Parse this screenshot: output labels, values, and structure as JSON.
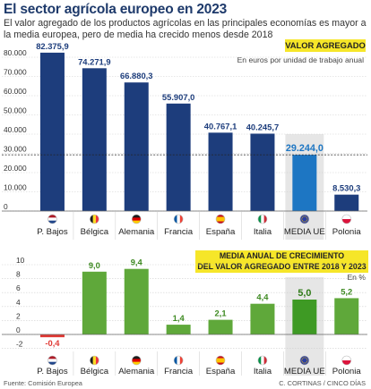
{
  "title": "El sector agrícola europeo en 2023",
  "subtitle": "El valor agregado de los productos agrícolas en las principales economías es mayor a la media europea, pero de media ha crecido menos desde 2018",
  "colors": {
    "bar_dark": "#1d3d7c",
    "bar_highlight": "#1d76c3",
    "green": "#5fa83a",
    "green_highlight": "#3e9a24",
    "red": "#e03a35",
    "highlight_bg": "#e6e6e6",
    "label_bg": "#f6e629"
  },
  "footer": {
    "source": "Fuente: Comisión Europea",
    "credit": "C. CORTINAS / CINCO DÍAS"
  },
  "chart_data": [
    {
      "type": "bar",
      "label": "VALOR AGREGADO",
      "unit": "En euros por unidad de trabajo anual",
      "categories": [
        "P. Bajos",
        "Bélgica",
        "Alemania",
        "Francia",
        "España",
        "Italia",
        "MEDIA UE",
        "Polonia"
      ],
      "flags": [
        "nl",
        "be",
        "de",
        "fr",
        "es",
        "it",
        "eu",
        "pl"
      ],
      "values": [
        82375.9,
        74271.9,
        66880.3,
        55907.0,
        40767.1,
        40245.7,
        29244.0,
        8530.3
      ],
      "value_labels": [
        "82.375,9",
        "74.271,9",
        "66.880,3",
        "55.907,0",
        "40.767,1",
        "40.245,7",
        "29.244,0",
        "8.530,3"
      ],
      "highlight_index": 6,
      "ylim": [
        0,
        80000
      ],
      "yticks": [
        0,
        10000,
        20000,
        30000,
        40000,
        50000,
        60000,
        70000,
        80000
      ],
      "ytick_labels": [
        "0",
        "10.000",
        "20.000",
        "30.000",
        "40.000",
        "50.000",
        "60.000",
        "70.000",
        "80.000"
      ],
      "reference_line": 29244.0
    },
    {
      "type": "bar",
      "label": "MEDIA ANUAL DE CRECIMIENTO DEL VALOR AGREGADO ENTRE 2018 Y 2023",
      "label_lines": [
        "MEDIA ANUAL DE CRECIMIENTO",
        "DEL VALOR AGREGADO ENTRE 2018 Y 2023"
      ],
      "unit": "En %",
      "categories": [
        "P. Bajos",
        "Bélgica",
        "Alemania",
        "Francia",
        "España",
        "Italia",
        "MEDIA UE",
        "Polonia"
      ],
      "flags": [
        "nl",
        "be",
        "de",
        "fr",
        "es",
        "it",
        "eu",
        "pl"
      ],
      "values": [
        -0.4,
        9.0,
        9.4,
        1.4,
        2.1,
        4.4,
        5.0,
        5.2
      ],
      "value_labels": [
        "-0,4",
        "9,0",
        "9,4",
        "1,4",
        "2,1",
        "4,4",
        "5,0",
        "5,2"
      ],
      "highlight_index": 6,
      "ylim": [
        -2,
        10
      ],
      "yticks": [
        -2,
        0,
        2,
        4,
        6,
        8,
        10
      ],
      "ytick_labels": [
        "-2",
        "0",
        "2",
        "4",
        "6",
        "8",
        "10"
      ]
    }
  ]
}
